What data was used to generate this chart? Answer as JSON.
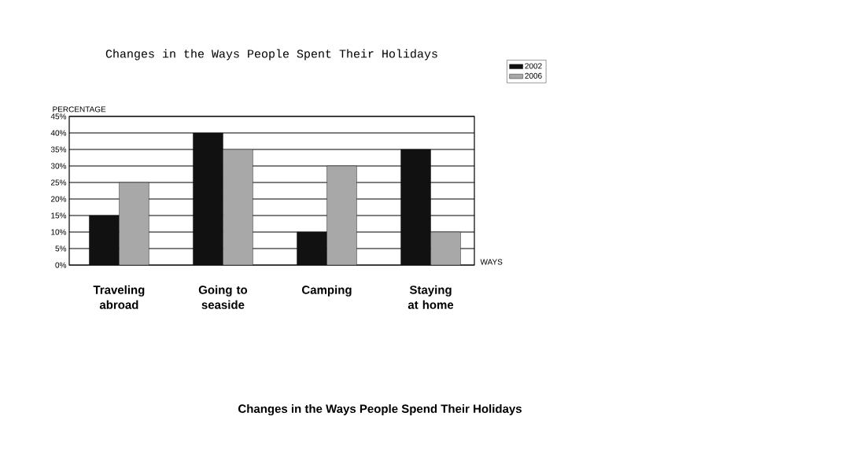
{
  "chart_data": {
    "type": "bar",
    "title": "Changes in the Ways People Spent Their Holidays",
    "categories": [
      "Traveling abroad",
      "Going to seaside",
      "Camping",
      "Staying at home"
    ],
    "series": [
      {
        "name": "2002",
        "color": "#111111",
        "values": [
          15,
          40,
          10,
          35
        ]
      },
      {
        "name": "2006",
        "color": "#a8a8a8",
        "values": [
          25,
          35,
          30,
          10
        ]
      }
    ],
    "ylabel": "PERCENTAGE",
    "xlabel": "WAYS",
    "ylim": [
      0,
      45
    ],
    "yticks": [
      {
        "value": 0,
        "label": "0%"
      },
      {
        "value": 5,
        "label": "5%"
      },
      {
        "value": 10,
        "label": "10%"
      },
      {
        "value": 15,
        "label": "15%"
      },
      {
        "value": 20,
        "label": "20%"
      },
      {
        "value": 25,
        "label": "25%"
      },
      {
        "value": 30,
        "label": "30%"
      },
      {
        "value": 35,
        "label": "35%"
      },
      {
        "value": 40,
        "label": "40%"
      },
      {
        "value": 45,
        "label": "45%"
      }
    ],
    "grid": "y",
    "legend": "top right",
    "annotations": [
      "Changes in the Ways People Spend Their Holidays"
    ]
  }
}
